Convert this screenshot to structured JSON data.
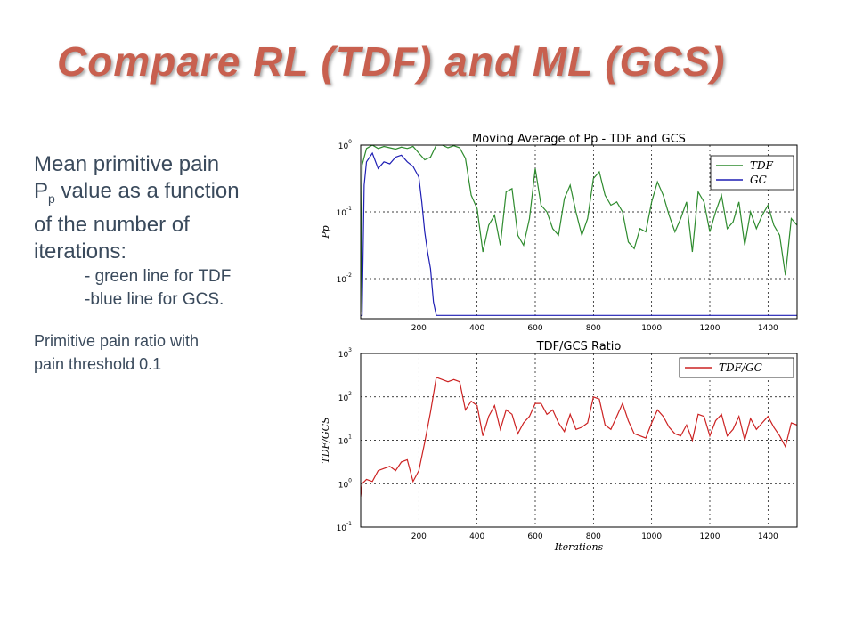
{
  "slide": {
    "title": "Compare RL (TDF) and ML (GCS)",
    "desc": {
      "line1": "Mean primitive pain",
      "line2a": "P",
      "line2sub": "p",
      "line2b": " value as a function",
      "line3": "of the number of",
      "line4": "iterations:",
      "green_note": "- green line for TDF",
      "blue_note": "-blue line for GCS.",
      "ratio_note1": "Primitive pain ratio with",
      "ratio_note2": "pain threshold 0.1"
    }
  },
  "colors": {
    "title": "#c8604f",
    "text": "#3a4a5c",
    "tdf": "#2e8b2e",
    "gcs": "#1f1fb4",
    "ratio": "#cc2222"
  },
  "chart_data": [
    {
      "type": "line",
      "title": "Moving Average of Pp - TDF and GCS",
      "xlabel": "",
      "ylabel": "Pp",
      "y_scale": "log",
      "xlim": [
        0,
        1500
      ],
      "ylim_exp": [
        -2.6,
        0
      ],
      "grid": true,
      "legend": "top-right",
      "x_ticks": [
        200,
        400,
        600,
        800,
        1000,
        1200,
        1400
      ],
      "y_ticks": [
        {
          "base": "10",
          "exp": "0",
          "v": 0
        },
        {
          "base": "10",
          "exp": "-1",
          "v": -1
        },
        {
          "base": "10",
          "exp": "-2",
          "v": -2
        }
      ],
      "series": [
        {
          "name": "TDF",
          "color": "#2e8b2e",
          "x": [
            0,
            5,
            20,
            40,
            60,
            80,
            100,
            120,
            140,
            160,
            180,
            200,
            220,
            240,
            260,
            280,
            300,
            320,
            340,
            360,
            380,
            400,
            420,
            440,
            460,
            480,
            500,
            520,
            540,
            560,
            580,
            600,
            620,
            640,
            660,
            680,
            700,
            720,
            740,
            760,
            780,
            800,
            820,
            840,
            860,
            880,
            900,
            920,
            940,
            960,
            980,
            1000,
            1020,
            1040,
            1060,
            1080,
            1100,
            1120,
            1140,
            1160,
            1180,
            1200,
            1220,
            1240,
            1260,
            1280,
            1300,
            1320,
            1340,
            1360,
            1380,
            1400,
            1420,
            1440,
            1460,
            1480,
            1500
          ],
          "y": [
            -2.5,
            -0.3,
            -0.05,
            0.0,
            -0.05,
            -0.02,
            -0.04,
            -0.06,
            -0.03,
            -0.05,
            -0.02,
            -0.12,
            -0.22,
            -0.18,
            0.0,
            0.0,
            -0.04,
            -0.01,
            -0.04,
            -0.2,
            -0.75,
            -0.95,
            -1.6,
            -1.2,
            -1.05,
            -1.5,
            -0.7,
            -0.65,
            -1.35,
            -1.5,
            -1.1,
            -0.35,
            -0.9,
            -1.0,
            -1.25,
            -1.35,
            -0.8,
            -0.6,
            -1.0,
            -1.35,
            -1.1,
            -0.5,
            -0.4,
            -0.75,
            -0.9,
            -0.85,
            -1.0,
            -1.45,
            -1.55,
            -1.25,
            -1.3,
            -0.85,
            -0.55,
            -0.75,
            -1.05,
            -1.3,
            -1.1,
            -0.85,
            -1.6,
            -0.7,
            -0.85,
            -1.3,
            -1.0,
            -0.75,
            -1.25,
            -1.15,
            -0.85,
            -1.5,
            -1.0,
            -1.25,
            -1.05,
            -0.9,
            -1.2,
            -1.35,
            -1.95,
            -1.1,
            -1.2
          ]
        },
        {
          "name": "GC",
          "color": "#1f1fb4",
          "x": [
            0,
            5,
            12,
            20,
            40,
            60,
            80,
            100,
            120,
            140,
            160,
            180,
            200,
            210,
            220,
            230,
            240,
            250,
            260,
            1500
          ],
          "y": [
            -2.55,
            -2.55,
            -0.6,
            -0.25,
            -0.12,
            -0.35,
            -0.25,
            -0.28,
            -0.18,
            -0.15,
            -0.25,
            -0.32,
            -0.48,
            -0.85,
            -1.3,
            -1.6,
            -1.85,
            -2.35,
            -2.55,
            -2.55
          ]
        }
      ]
    },
    {
      "type": "line",
      "title": "TDF/GCS Ratio",
      "xlabel": "Iterations",
      "ylabel": "TDF/GCS",
      "y_scale": "log",
      "xlim": [
        0,
        1500
      ],
      "ylim_exp": [
        -1,
        3
      ],
      "grid": true,
      "legend": "top-right",
      "x_ticks": [
        200,
        400,
        600,
        800,
        1000,
        1200,
        1400
      ],
      "y_ticks": [
        {
          "base": "10",
          "exp": "3",
          "v": 3
        },
        {
          "base": "10",
          "exp": "2",
          "v": 2
        },
        {
          "base": "10",
          "exp": "1",
          "v": 1
        },
        {
          "base": "10",
          "exp": "0",
          "v": 0
        },
        {
          "base": "10",
          "exp": "-1",
          "v": -1
        }
      ],
      "series": [
        {
          "name": "TDF/GC",
          "color": "#cc2222",
          "x": [
            0,
            5,
            20,
            40,
            60,
            80,
            100,
            120,
            140,
            160,
            180,
            200,
            220,
            240,
            260,
            280,
            300,
            320,
            340,
            360,
            380,
            400,
            420,
            440,
            460,
            480,
            500,
            520,
            540,
            560,
            580,
            600,
            620,
            640,
            660,
            680,
            700,
            720,
            740,
            760,
            780,
            800,
            820,
            840,
            860,
            880,
            900,
            920,
            940,
            960,
            980,
            1000,
            1020,
            1040,
            1060,
            1080,
            1100,
            1120,
            1140,
            1160,
            1180,
            1200,
            1220,
            1240,
            1260,
            1280,
            1300,
            1320,
            1340,
            1360,
            1380,
            1400,
            1420,
            1440,
            1460,
            1480,
            1500
          ],
          "y": [
            -0.3,
            0.0,
            0.1,
            0.05,
            0.3,
            0.35,
            0.4,
            0.3,
            0.5,
            0.55,
            0.05,
            0.3,
            0.95,
            1.65,
            2.45,
            2.4,
            2.35,
            2.4,
            2.35,
            1.7,
            1.9,
            1.8,
            1.1,
            1.55,
            1.8,
            1.25,
            1.7,
            1.6,
            1.15,
            1.4,
            1.55,
            1.85,
            1.85,
            1.6,
            1.7,
            1.4,
            1.2,
            1.6,
            1.25,
            1.3,
            1.4,
            2.0,
            1.95,
            1.35,
            1.25,
            1.55,
            1.85,
            1.45,
            1.15,
            1.1,
            1.05,
            1.4,
            1.7,
            1.55,
            1.3,
            1.15,
            1.1,
            1.35,
            1.0,
            1.6,
            1.55,
            1.1,
            1.45,
            1.6,
            1.1,
            1.25,
            1.55,
            1.0,
            1.5,
            1.25,
            1.4,
            1.55,
            1.3,
            1.1,
            0.85,
            1.4,
            1.35
          ]
        }
      ]
    }
  ]
}
